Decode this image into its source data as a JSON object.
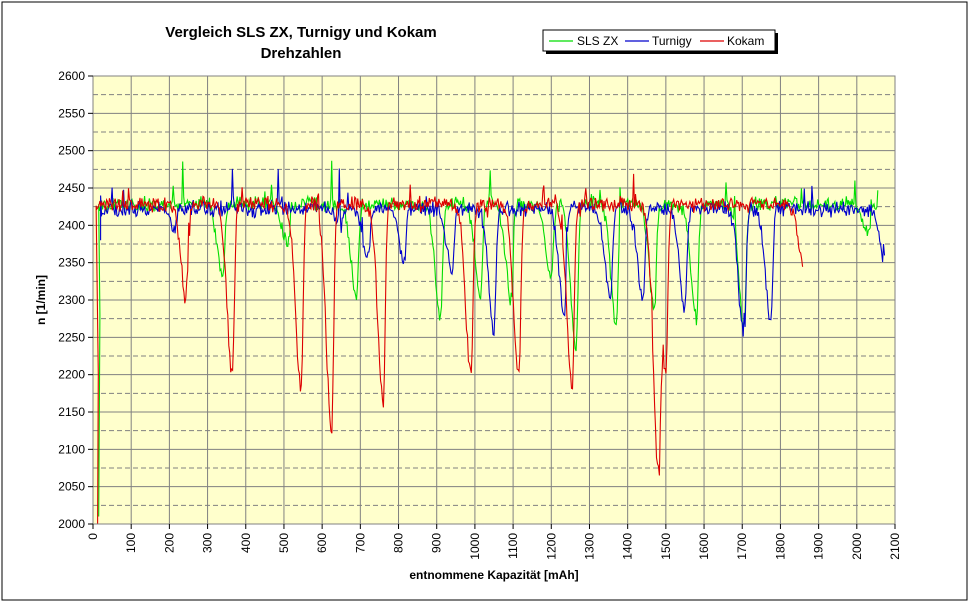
{
  "chart_data": {
    "type": "line",
    "title": "Vergleich SLS ZX, Turnigy und Kokam",
    "subtitle": "Drehzahlen",
    "xlabel": "entnommene Kapazität [mAh]",
    "ylabel": "n [1/min]",
    "xlim": [
      0,
      2100
    ],
    "ylim": [
      2000,
      2600
    ],
    "x_ticks": [
      "0",
      "100",
      "200",
      "300",
      "400",
      "500",
      "600",
      "700",
      "800",
      "900",
      "1000",
      "1100",
      "1200",
      "1300",
      "1400",
      "1500",
      "1600",
      "1700",
      "1800",
      "1900",
      "2000",
      "2100"
    ],
    "y_ticks": [
      "2000",
      "2050",
      "2100",
      "2150",
      "2200",
      "2250",
      "2300",
      "2350",
      "2400",
      "2450",
      "2500",
      "2550",
      "2600"
    ],
    "grid": true,
    "legend_position": "top-right",
    "plot_background": "#ffffcc",
    "series": [
      {
        "name": "SLS ZX",
        "color": "#00dd00",
        "x_start": 15,
        "x_end": 2055,
        "baseline": 2428,
        "dips": [
          [
            340,
            2330
          ],
          [
            510,
            2375
          ],
          [
            690,
            2300
          ],
          [
            910,
            2275
          ],
          [
            1015,
            2305
          ],
          [
            1095,
            2300
          ],
          [
            1200,
            2330
          ],
          [
            1265,
            2235
          ],
          [
            1370,
            2265
          ],
          [
            1470,
            2290
          ],
          [
            1580,
            2275
          ],
          [
            1705,
            2265
          ],
          [
            2030,
            2390
          ]
        ],
        "spikes": [
          [
            235,
            2480
          ],
          [
            625,
            2485
          ],
          [
            1040,
            2485
          ],
          [
            1380,
            2470
          ],
          [
            1680,
            2470
          ]
        ]
      },
      {
        "name": "Turnigy",
        "color": "#0000cc",
        "x_start": 20,
        "x_end": 2073,
        "baseline": 2422,
        "dips": [
          [
            215,
            2395
          ],
          [
            650,
            2400
          ],
          [
            720,
            2355
          ],
          [
            815,
            2350
          ],
          [
            940,
            2340
          ],
          [
            1050,
            2260
          ],
          [
            1235,
            2280
          ],
          [
            1355,
            2305
          ],
          [
            1440,
            2300
          ],
          [
            1550,
            2290
          ],
          [
            1705,
            2240
          ],
          [
            1775,
            2270
          ],
          [
            2073,
            2355
          ]
        ],
        "spikes": [
          [
            365,
            2480
          ],
          [
            485,
            2480
          ],
          [
            645,
            2490
          ],
          [
            1240,
            2480
          ],
          [
            1705,
            2470
          ]
        ]
      },
      {
        "name": "Kokam",
        "color": "#dd0000",
        "x_start": 8,
        "x_end": 1860,
        "baseline": 2428,
        "dips": [
          [
            245,
            2295
          ],
          [
            365,
            2200
          ],
          [
            545,
            2180
          ],
          [
            625,
            2125
          ],
          [
            760,
            2165
          ],
          [
            990,
            2200
          ],
          [
            1115,
            2195
          ],
          [
            1255,
            2185
          ],
          [
            1480,
            2125
          ],
          [
            1500,
            2200
          ],
          [
            1860,
            2350
          ]
        ],
        "spikes": [
          [
            250,
            2485
          ],
          [
            590,
            2470
          ],
          [
            1180,
            2470
          ],
          [
            1480,
            2480
          ]
        ]
      }
    ]
  }
}
